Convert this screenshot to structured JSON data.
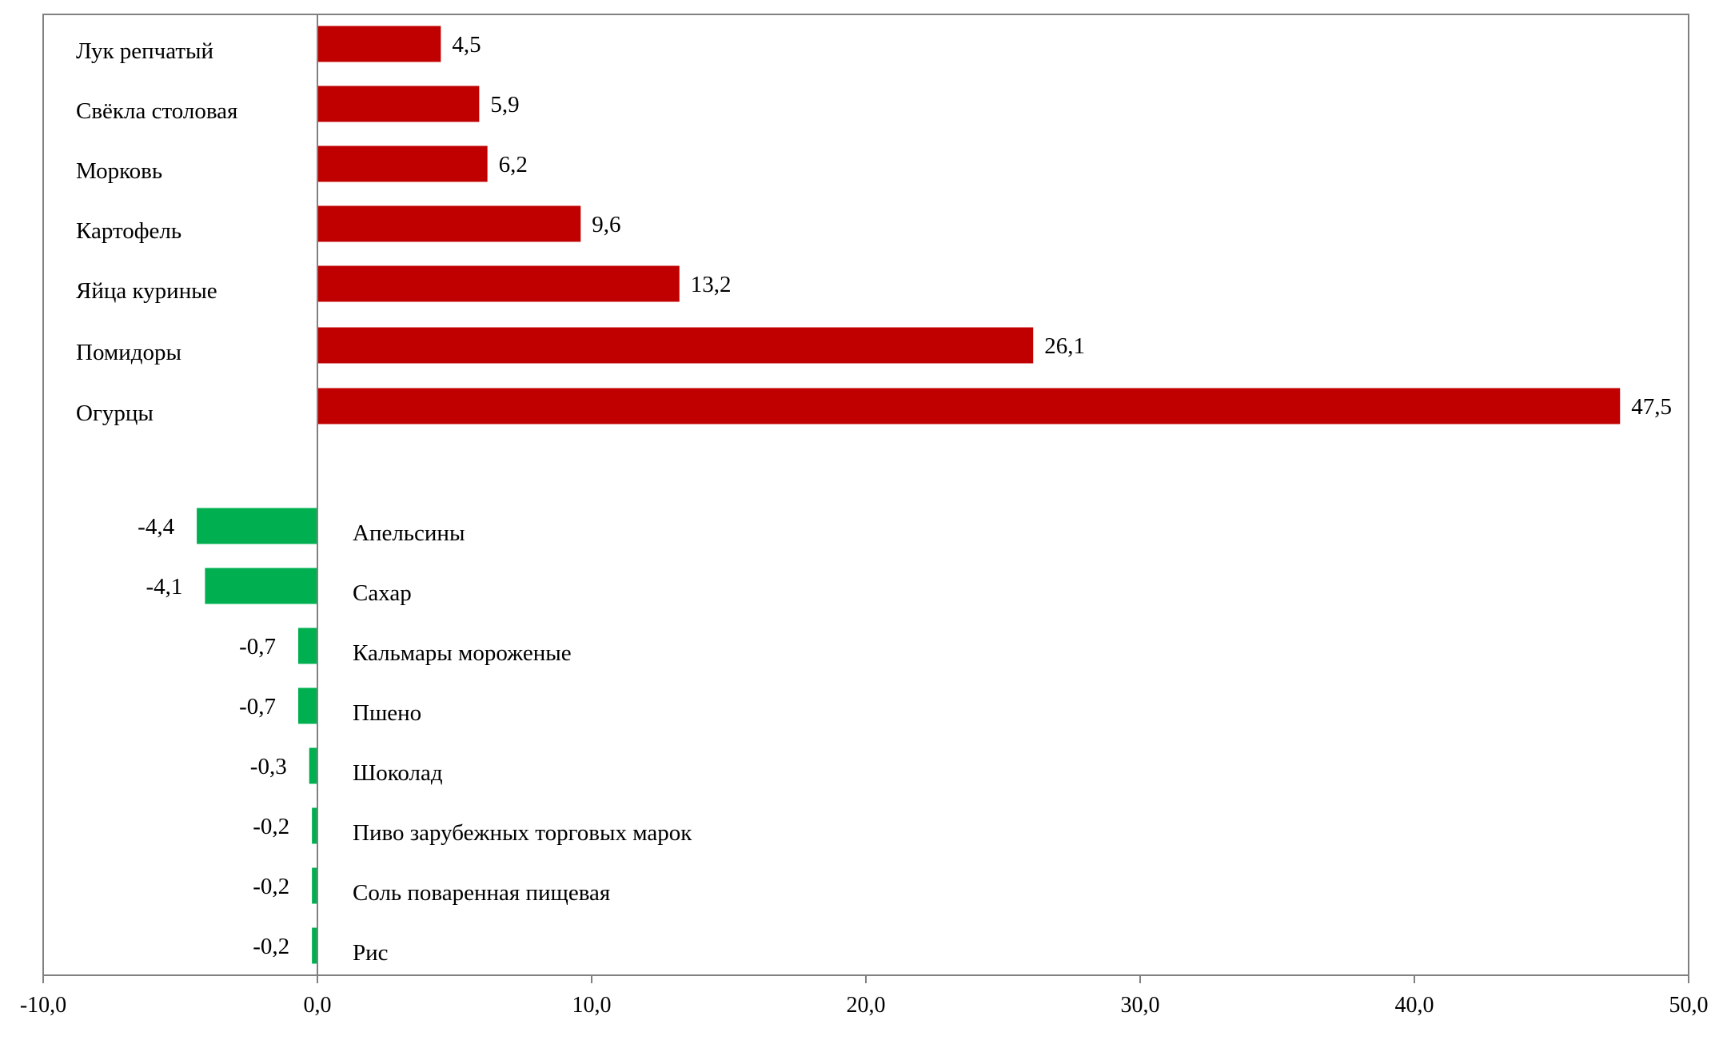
{
  "chart_data": {
    "type": "bar",
    "orientation": "horizontal",
    "title": "",
    "xlabel": "",
    "ylabel": "",
    "xlim": [
      -10,
      50
    ],
    "x_ticks": [
      -10,
      0,
      10,
      20,
      30,
      40,
      50
    ],
    "x_tick_labels": [
      "-10,0",
      "0,0",
      "10,0",
      "20,0",
      "30,0",
      "40,0",
      "50,0"
    ],
    "grid": false,
    "legend": "none",
    "colors": {
      "positive": "#C00000",
      "negative": "#00B050",
      "axis": "#808080"
    },
    "categories": [
      "Лук репчатый",
      "Свёкла столовая",
      "Морковь",
      "Картофель",
      "Яйца куриные",
      "Помидоры",
      "Огурцы",
      "Апельсины",
      "Сахар",
      "Кальмары мороженые",
      "Пшено",
      "Шоколад",
      "Пиво зарубежных торговых марок",
      "Соль поваренная пищевая",
      "Рис"
    ],
    "values": [
      4.5,
      5.9,
      6.2,
      9.6,
      13.2,
      26.1,
      47.5,
      -4.4,
      -4.1,
      -0.7,
      -0.7,
      -0.3,
      -0.2,
      -0.2,
      -0.2
    ],
    "value_labels": [
      "4,5",
      "5,9",
      "6,2",
      "9,6",
      "13,2",
      "26,1",
      "47,5",
      "-4,4",
      "-4,1",
      "-0,7",
      "-0,7",
      "-0,3",
      "-0,2",
      "-0,2",
      "-0,2"
    ]
  }
}
